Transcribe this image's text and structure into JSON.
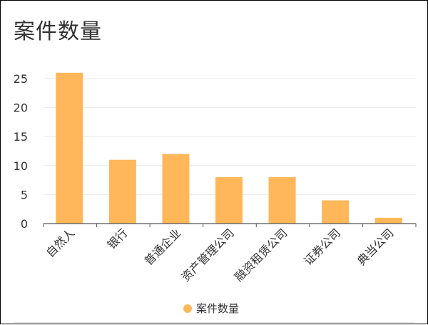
{
  "chart_data": {
    "type": "bar",
    "title": "案件数量",
    "categories": [
      "自然人",
      "银行",
      "普通企业",
      "资产管理公司",
      "融资租赁公司",
      "证券公司",
      "典当公司"
    ],
    "series": [
      {
        "name": "案件数量",
        "values": [
          26,
          11,
          12,
          8,
          8,
          4,
          1
        ]
      }
    ],
    "ylim": [
      0,
      25
    ],
    "yticks": [
      0,
      5,
      10,
      15,
      20,
      25
    ],
    "grid": true,
    "legend_position": "bottom-center",
    "bar_color": "#FFB75A",
    "grid_color": "#e8e8e8",
    "axis_color": "#555555"
  }
}
